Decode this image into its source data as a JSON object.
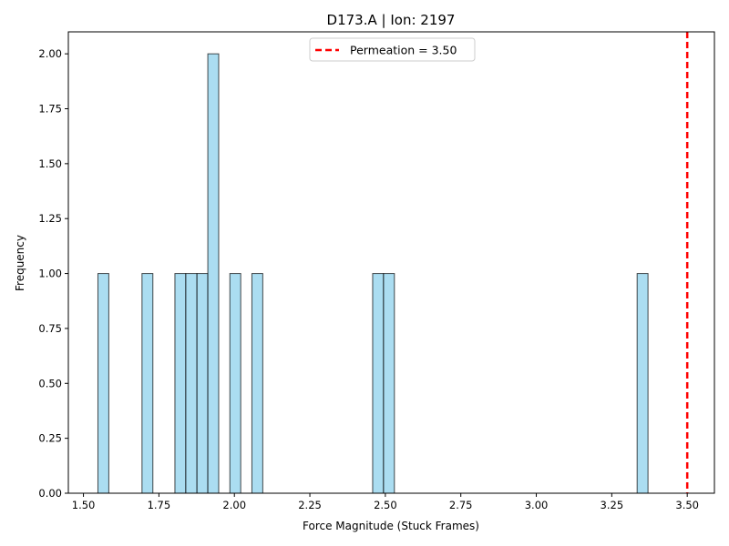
{
  "chart_data": {
    "type": "bar",
    "title": "D173.A | Ion: 2197",
    "xlabel": "Force Magnitude (Stuck Frames)",
    "ylabel": "Frequency",
    "xlim": [
      1.45,
      3.59
    ],
    "ylim": [
      0,
      2.1
    ],
    "xticks": [
      "1.50",
      "1.75",
      "2.00",
      "2.25",
      "2.50",
      "2.75",
      "3.00",
      "3.25",
      "3.50"
    ],
    "xtick_values": [
      1.5,
      1.75,
      2.0,
      2.25,
      2.5,
      2.75,
      3.0,
      3.25,
      3.5
    ],
    "yticks": [
      "0.00",
      "0.25",
      "0.50",
      "0.75",
      "1.00",
      "1.25",
      "1.50",
      "1.75",
      "2.00"
    ],
    "ytick_values": [
      0,
      0.25,
      0.5,
      0.75,
      1.0,
      1.25,
      1.5,
      1.75,
      2.0
    ],
    "bins": [
      {
        "x0": 1.548,
        "x1": 1.584,
        "value": 1
      },
      {
        "x0": 1.694,
        "x1": 1.73,
        "value": 1
      },
      {
        "x0": 1.803,
        "x1": 1.839,
        "value": 1
      },
      {
        "x0": 1.839,
        "x1": 1.876,
        "value": 1
      },
      {
        "x0": 1.876,
        "x1": 1.912,
        "value": 1
      },
      {
        "x0": 1.912,
        "x1": 1.948,
        "value": 2
      },
      {
        "x0": 1.985,
        "x1": 2.021,
        "value": 1
      },
      {
        "x0": 2.058,
        "x1": 2.094,
        "value": 1
      },
      {
        "x0": 2.458,
        "x1": 2.494,
        "value": 1
      },
      {
        "x0": 2.494,
        "x1": 2.53,
        "value": 1
      },
      {
        "x0": 3.334,
        "x1": 3.37,
        "value": 1
      }
    ],
    "bar_color": "#87ceeb",
    "bar_edge_color": "#000000",
    "reference_line": {
      "x": 3.5,
      "label": "Permeation = 3.50",
      "color": "#ff0000"
    },
    "legend_position": "top-center",
    "grid": false
  }
}
